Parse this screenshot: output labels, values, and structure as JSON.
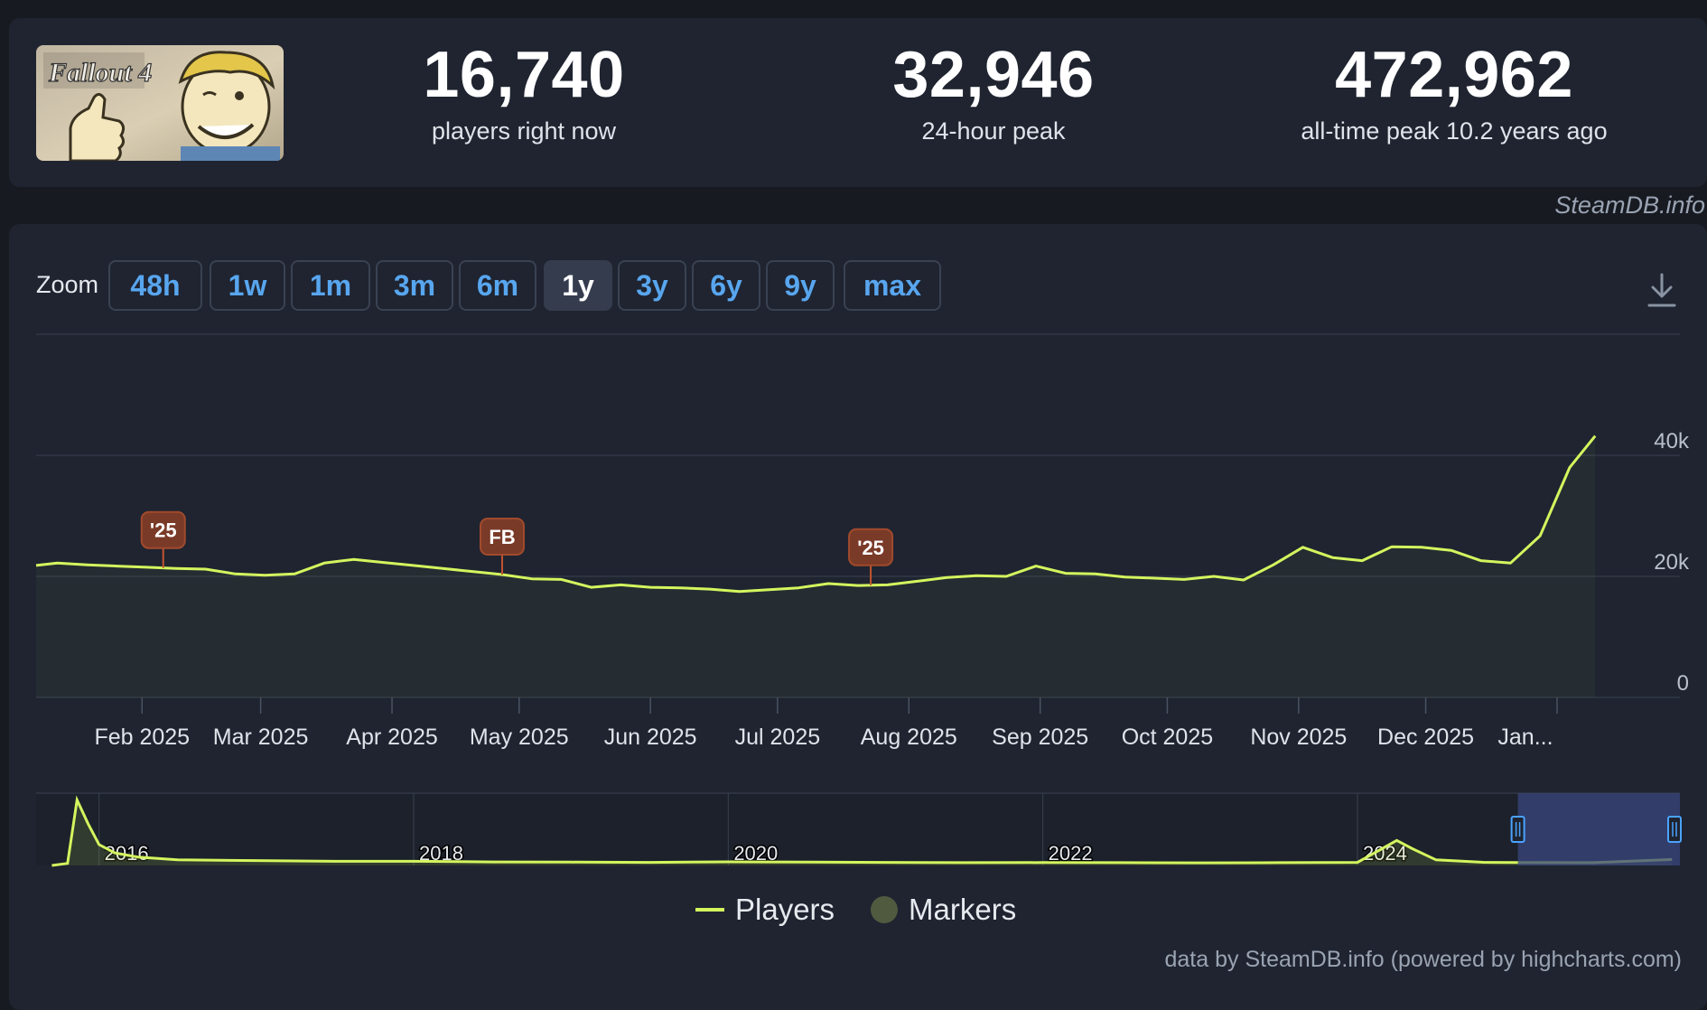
{
  "game": {
    "logo_text": "Fallout 4"
  },
  "stats": [
    {
      "value": "16,740",
      "label": "players right now"
    },
    {
      "value": "32,946",
      "label": "24-hour peak"
    },
    {
      "value": "472,962",
      "label": "all-time peak 10.2 years ago"
    }
  ],
  "credit_top": "SteamDB.info",
  "zoom": {
    "label": "Zoom",
    "options": [
      "48h",
      "1w",
      "1m",
      "3m",
      "6m",
      "1y",
      "3y",
      "6y",
      "9y",
      "max"
    ],
    "active": "1y"
  },
  "icons": {
    "download": "download-icon"
  },
  "colors": {
    "line": "#d4f55e",
    "marker": "#7a3a28",
    "navigator_selection": "#3a4780"
  },
  "chart_data": {
    "type": "line",
    "ylim": [
      0,
      40000
    ],
    "y_ticks": [
      "0",
      "20k",
      "40k"
    ],
    "x_ticks": [
      "Feb 2025",
      "Mar 2025",
      "Apr 2025",
      "May 2025",
      "Jun 2025",
      "Jul 2025",
      "Aug 2025",
      "Sep 2025",
      "Oct 2025",
      "Nov 2025",
      "Dec 2025",
      "Jan..."
    ],
    "series": [
      {
        "name": "Players",
        "x": [
          "2025-01-07",
          "2025-01-12",
          "2025-01-19",
          "2025-01-26",
          "2025-02-02",
          "2025-02-09",
          "2025-02-16",
          "2025-02-23",
          "2025-03-02",
          "2025-03-09",
          "2025-03-16",
          "2025-03-23",
          "2025-03-30",
          "2025-04-06",
          "2025-04-13",
          "2025-04-20",
          "2025-04-27",
          "2025-05-04",
          "2025-05-11",
          "2025-05-18",
          "2025-05-25",
          "2025-06-01",
          "2025-06-08",
          "2025-06-15",
          "2025-06-22",
          "2025-06-29",
          "2025-07-06",
          "2025-07-13",
          "2025-07-20",
          "2025-07-27",
          "2025-08-03",
          "2025-08-10",
          "2025-08-17",
          "2025-08-24",
          "2025-08-31",
          "2025-09-07",
          "2025-09-14",
          "2025-09-21",
          "2025-09-28",
          "2025-10-05",
          "2025-10-12",
          "2025-10-19",
          "2025-10-26",
          "2025-11-02",
          "2025-11-09",
          "2025-11-16",
          "2025-11-23",
          "2025-11-30",
          "2025-12-07",
          "2025-12-14",
          "2025-12-21",
          "2025-12-28",
          "2026-01-04",
          "2026-01-10"
        ],
        "y": [
          21800,
          22200,
          21900,
          21700,
          21500,
          21300,
          21200,
          20400,
          20200,
          20400,
          22200,
          22800,
          22300,
          21800,
          21300,
          20800,
          20300,
          19600,
          19500,
          18200,
          18600,
          18200,
          18100,
          17900,
          17500,
          17800,
          18100,
          18800,
          18500,
          18600,
          19200,
          19800,
          20100,
          20000,
          21700,
          20500,
          20400,
          19900,
          19700,
          19500,
          20000,
          19400,
          21900,
          24800,
          23100,
          22600,
          24900,
          24800,
          24300,
          22600,
          22200,
          26700,
          38000,
          43200
        ]
      }
    ],
    "markers": [
      {
        "label": "'25",
        "x": "2025-02-06"
      },
      {
        "label": "FB",
        "x": "2025-04-27"
      },
      {
        "label": "'25",
        "x": "2025-07-23"
      }
    ],
    "navigator": {
      "x_ticks": [
        "2016",
        "2018",
        "2020",
        "2022",
        "2024"
      ],
      "series": [
        {
          "name": "Players",
          "x": [
            2015.7,
            2015.8,
            2015.86,
            2015.93,
            2016.0,
            2016.1,
            2016.25,
            2016.5,
            2017.0,
            2017.5,
            2018.0,
            2018.5,
            2019.0,
            2019.5,
            2020.0,
            2020.5,
            2021.0,
            2021.5,
            2022.0,
            2022.5,
            2023.0,
            2023.5,
            2024.0,
            2024.25,
            2024.35,
            2024.5,
            2024.8,
            2025.0,
            2025.5,
            2026.0
          ],
          "y": [
            0,
            15000,
            470000,
            300000,
            150000,
            90000,
            60000,
            40000,
            35000,
            30000,
            30000,
            25000,
            24000,
            22000,
            26000,
            24000,
            22000,
            20000,
            21000,
            20000,
            19000,
            20000,
            22000,
            180000,
            120000,
            40000,
            23000,
            21000,
            20000,
            43000
          ]
        }
      ],
      "selection": [
        "2025-01-07",
        "2026-01-10"
      ]
    }
  },
  "legend": [
    {
      "name": "Players"
    },
    {
      "name": "Markers"
    }
  ],
  "credit_bottom": "data by SteamDB.info (powered by highcharts.com)"
}
